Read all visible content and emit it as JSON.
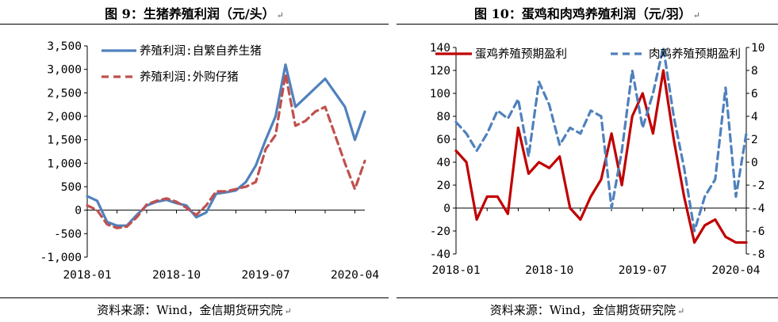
{
  "panels": [
    {
      "title": "图 9：生猪养殖利润（元/头）",
      "source": "资料来源：Wind，金信期货研究院",
      "return_mark": "↵"
    },
    {
      "title": "图 10：蛋鸡和肉鸡养殖利润（元/羽）",
      "source": "资料来源：Wind，金信期货研究院",
      "return_mark": "↵"
    }
  ],
  "chart_data": [
    {
      "type": "line",
      "title": "",
      "xlabel": "",
      "ylabel": "",
      "x_ticks": [
        "2018-01",
        "2018-10",
        "2019-07",
        "2020-04"
      ],
      "y_ticks": [
        "-1,000",
        "-500",
        "0",
        "500",
        "1,000",
        "1,500",
        "2,000",
        "2,500",
        "3,000",
        "3,500"
      ],
      "ylim": [
        -1000,
        3500
      ],
      "x_range": [
        "2018-01",
        "2020-05"
      ],
      "grid": false,
      "legend_position": "top-left",
      "series": [
        {
          "name": "养殖利润:自繁自养生猪",
          "color": "#4f81bd",
          "style": "solid",
          "x": [
            "2018-01",
            "2018-02",
            "2018-03",
            "2018-04",
            "2018-05",
            "2018-06",
            "2018-07",
            "2018-08",
            "2018-09",
            "2018-10",
            "2018-11",
            "2018-12",
            "2019-01",
            "2019-02",
            "2019-03",
            "2019-04",
            "2019-05",
            "2019-06",
            "2019-07",
            "2019-08",
            "2019-09",
            "2019-10",
            "2019-11",
            "2019-12",
            "2020-01",
            "2020-02",
            "2020-03",
            "2020-04",
            "2020-05"
          ],
          "values": [
            300,
            200,
            -250,
            -330,
            -330,
            -100,
            100,
            180,
            220,
            150,
            100,
            -150,
            -50,
            350,
            380,
            420,
            600,
            950,
            1500,
            2000,
            3100,
            2200,
            2400,
            2600,
            2800,
            2500,
            2200,
            1500,
            2100
          ]
        },
        {
          "name": "养殖利润:外购仔猪",
          "color": "#c0504d",
          "style": "dashed",
          "x": [
            "2018-01",
            "2018-02",
            "2018-03",
            "2018-04",
            "2018-05",
            "2018-06",
            "2018-07",
            "2018-08",
            "2018-09",
            "2018-10",
            "2018-11",
            "2018-12",
            "2019-01",
            "2019-02",
            "2019-03",
            "2019-04",
            "2019-05",
            "2019-06",
            "2019-07",
            "2019-08",
            "2019-09",
            "2019-10",
            "2019-11",
            "2019-12",
            "2020-01",
            "2020-02",
            "2020-03",
            "2020-04",
            "2020-05"
          ],
          "values": [
            100,
            0,
            -300,
            -380,
            -350,
            -150,
            120,
            200,
            250,
            180,
            50,
            -100,
            100,
            400,
            400,
            450,
            500,
            600,
            1300,
            1600,
            2900,
            1800,
            1900,
            2100,
            2200,
            1600,
            1000,
            450,
            1050
          ]
        }
      ]
    },
    {
      "type": "line",
      "title": "",
      "xlabel": "",
      "ylabel": "",
      "x_ticks": [
        "2018-01",
        "2018-10",
        "2019-07",
        "2020-04"
      ],
      "y_ticks_left": [
        "-40",
        "-20",
        "0",
        "20",
        "40",
        "60",
        "80",
        "100",
        "120",
        "140"
      ],
      "y_ticks_right": [
        "-8",
        "-6",
        "-4",
        "-2",
        "0",
        "2",
        "4",
        "6",
        "8",
        "10"
      ],
      "ylim_left": [
        -40,
        140
      ],
      "ylim_right": [
        -8,
        10
      ],
      "x_range": [
        "2018-01",
        "2020-05"
      ],
      "grid": false,
      "legend_position": "top",
      "series": [
        {
          "name": "蛋鸡养殖预期盈利",
          "axis": "left",
          "color": "#c00000",
          "style": "solid",
          "x": [
            "2018-01",
            "2018-02",
            "2018-03",
            "2018-04",
            "2018-05",
            "2018-06",
            "2018-07",
            "2018-08",
            "2018-09",
            "2018-10",
            "2018-11",
            "2018-12",
            "2019-01",
            "2019-02",
            "2019-03",
            "2019-04",
            "2019-05",
            "2019-06",
            "2019-07",
            "2019-08",
            "2019-09",
            "2019-10",
            "2019-11",
            "2019-12",
            "2020-01",
            "2020-02",
            "2020-03",
            "2020-04",
            "2020-05"
          ],
          "values": [
            50,
            40,
            -10,
            10,
            10,
            -5,
            70,
            30,
            40,
            35,
            45,
            0,
            -10,
            10,
            25,
            65,
            20,
            80,
            100,
            65,
            120,
            60,
            10,
            -30,
            -15,
            -10,
            -25,
            -30,
            -30
          ]
        },
        {
          "name": "肉鸡养殖预期盈利",
          "axis": "right",
          "color": "#4f81bd",
          "style": "dashed",
          "x": [
            "2018-01",
            "2018-02",
            "2018-03",
            "2018-04",
            "2018-05",
            "2018-06",
            "2018-07",
            "2018-08",
            "2018-09",
            "2018-10",
            "2018-11",
            "2018-12",
            "2019-01",
            "2019-02",
            "2019-03",
            "2019-04",
            "2019-05",
            "2019-06",
            "2019-07",
            "2019-08",
            "2019-09",
            "2019-10",
            "2019-11",
            "2019-12",
            "2020-01",
            "2020-02",
            "2020-03",
            "2020-04",
            "2020-05"
          ],
          "values": [
            3.5,
            2.5,
            1.0,
            2.5,
            4.5,
            3.8,
            5.5,
            0.5,
            7.0,
            5.0,
            1.5,
            3.0,
            2.5,
            4.5,
            4.0,
            -4.0,
            1.0,
            8.0,
            3.0,
            6.0,
            10.0,
            4.0,
            -0.5,
            -6.0,
            -3.0,
            -1.5,
            6.5,
            -3.0,
            2.5
          ]
        }
      ]
    }
  ]
}
